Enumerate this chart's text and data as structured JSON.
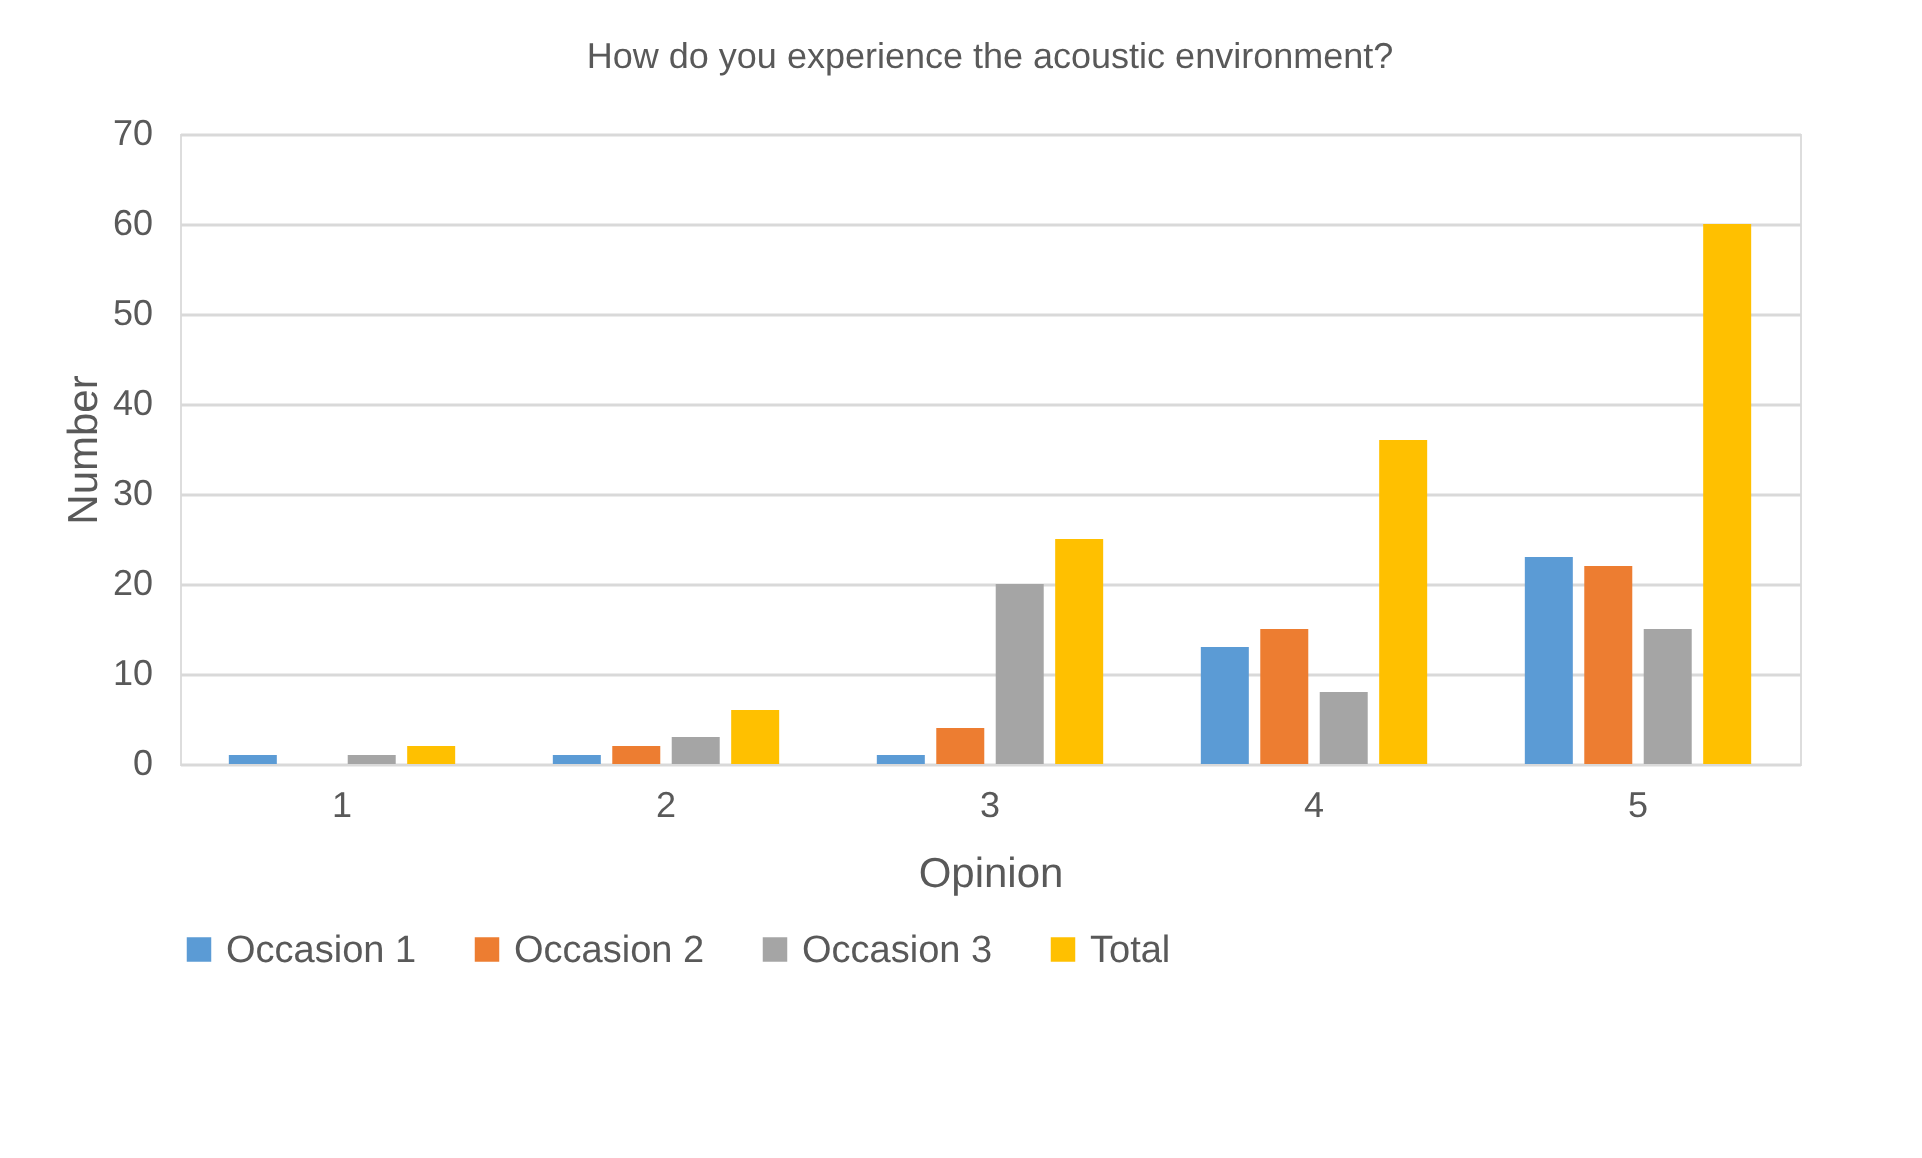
{
  "chart_data": {
    "type": "bar",
    "title": "How do you experience the acoustic environment?",
    "xlabel": "Opinion",
    "ylabel": "Number",
    "categories": [
      "1",
      "2",
      "3",
      "4",
      "5"
    ],
    "series": [
      {
        "name": "Occasion 1",
        "color": "#5b9bd5",
        "values": [
          1,
          1,
          1,
          13,
          23
        ]
      },
      {
        "name": "Occasion 2",
        "color": "#ed7d31",
        "values": [
          0,
          2,
          4,
          15,
          22
        ]
      },
      {
        "name": "Occasion 3",
        "color": "#a5a5a5",
        "values": [
          1,
          3,
          20,
          8,
          15
        ]
      },
      {
        "name": "Total",
        "color": "#ffc000",
        "values": [
          2,
          6,
          25,
          36,
          60
        ]
      }
    ],
    "ylim": [
      0,
      70
    ],
    "yticks": [
      0,
      10,
      20,
      30,
      40,
      50,
      60,
      70
    ],
    "grid": "y",
    "legend": "bottom"
  }
}
